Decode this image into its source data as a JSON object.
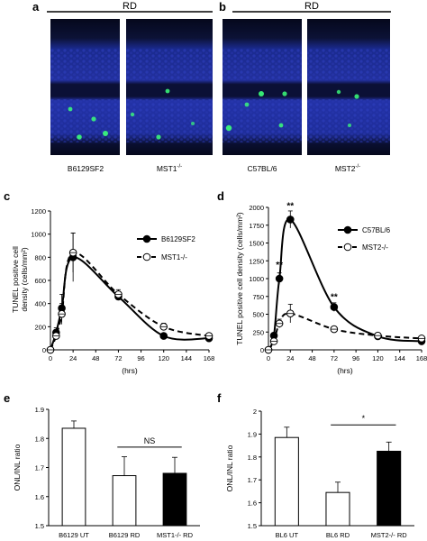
{
  "panels": {
    "a": {
      "letter": "a",
      "title": "RD",
      "images": [
        {
          "label": "B6129SF2"
        },
        {
          "label": "MST1",
          "sup": "-/-"
        }
      ]
    },
    "b": {
      "letter": "b",
      "title": "RD",
      "images": [
        {
          "label": "C57BL/6"
        },
        {
          "label": "MST2",
          "sup": "-/-"
        }
      ]
    }
  },
  "colors": {
    "nuclei": "#1d2fa8",
    "tunel": "#3cff7a"
  },
  "chart_data": [
    {
      "panel": "c",
      "type": "line",
      "xlabel": "(hrs)",
      "ylabel": [
        "TUNEL positive cell",
        "density (cells/mm²)"
      ],
      "xlim": [
        0,
        168
      ],
      "ylim": [
        0,
        1200
      ],
      "xticks": [
        0,
        24,
        48,
        72,
        96,
        120,
        144,
        168
      ],
      "yticks": [
        0,
        200,
        400,
        600,
        800,
        1000,
        1200
      ],
      "series": [
        {
          "name": "B6129SF2",
          "style": "solid-filled",
          "x": [
            0,
            6,
            12,
            24,
            72,
            120,
            168
          ],
          "y": [
            0,
            150,
            360,
            800,
            460,
            120,
            100
          ],
          "err": [
            0,
            40,
            120,
            210,
            30,
            20,
            20
          ]
        },
        {
          "name": "MST1-/-",
          "style": "dashed-open",
          "x": [
            0,
            6,
            12,
            24,
            72,
            120,
            168
          ],
          "y": [
            0,
            120,
            310,
            840,
            480,
            200,
            120
          ],
          "err": [
            0,
            30,
            90,
            170,
            40,
            30,
            20
          ]
        }
      ]
    },
    {
      "panel": "d",
      "type": "line",
      "xlabel": "(hrs)",
      "ylabel": [
        "TUNEL positive cell density (cells/mm²)"
      ],
      "xlim": [
        0,
        168
      ],
      "ylim": [
        0,
        2000
      ],
      "xticks": [
        0,
        24,
        48,
        72,
        96,
        120,
        144,
        168
      ],
      "yticks": [
        0,
        250,
        500,
        750,
        1000,
        1250,
        1500,
        1750,
        2000
      ],
      "series": [
        {
          "name": "C57BL/6",
          "style": "solid-filled",
          "x": [
            0,
            6,
            12,
            24,
            72,
            120,
            168
          ],
          "y": [
            0,
            200,
            1000,
            1830,
            600,
            190,
            120
          ],
          "err": [
            0,
            40,
            80,
            120,
            60,
            30,
            20
          ]
        },
        {
          "name": "MST2-/-",
          "style": "dashed-open",
          "x": [
            0,
            6,
            12,
            24,
            72,
            120,
            168
          ],
          "y": [
            0,
            120,
            370,
            510,
            290,
            200,
            160
          ],
          "err": [
            0,
            30,
            60,
            130,
            40,
            30,
            20
          ]
        }
      ],
      "annotations": [
        {
          "x": 12,
          "y": 1150,
          "text": "**"
        },
        {
          "x": 24,
          "y": 1980,
          "text": "**"
        },
        {
          "x": 72,
          "y": 700,
          "text": "**"
        }
      ]
    },
    {
      "panel": "e",
      "type": "bar",
      "ylabel": "ONL/INL ratio",
      "ylim": [
        1.5,
        1.9
      ],
      "yticks": [
        "1.5",
        "1.6",
        "1.7",
        "1.8",
        "1.9"
      ],
      "categories": [
        "B6129 UT",
        "B6129 RD",
        "MST1-/- RD"
      ],
      "values": [
        1.835,
        1.672,
        1.68
      ],
      "errors": [
        0.025,
        0.065,
        0.055
      ],
      "fills": [
        "open",
        "open",
        "filled"
      ],
      "significance": {
        "from": 1,
        "to": 2,
        "text": "NS",
        "y": 1.77
      }
    },
    {
      "panel": "f",
      "type": "bar",
      "ylabel": "ONL/INL ratio",
      "ylim": [
        1.5,
        2.0
      ],
      "yticks": [
        "1.5",
        "1.6",
        "1.7",
        "1.8",
        "1.9",
        "2"
      ],
      "categories": [
        "BL6 UT",
        "BL6 RD",
        "MST2-/- RD"
      ],
      "values": [
        1.885,
        1.645,
        1.825
      ],
      "errors": [
        0.045,
        0.045,
        0.04
      ],
      "fills": [
        "open",
        "open",
        "filled"
      ],
      "significance": {
        "from": 1,
        "to": 2,
        "text": "*",
        "y": 1.94
      }
    }
  ]
}
